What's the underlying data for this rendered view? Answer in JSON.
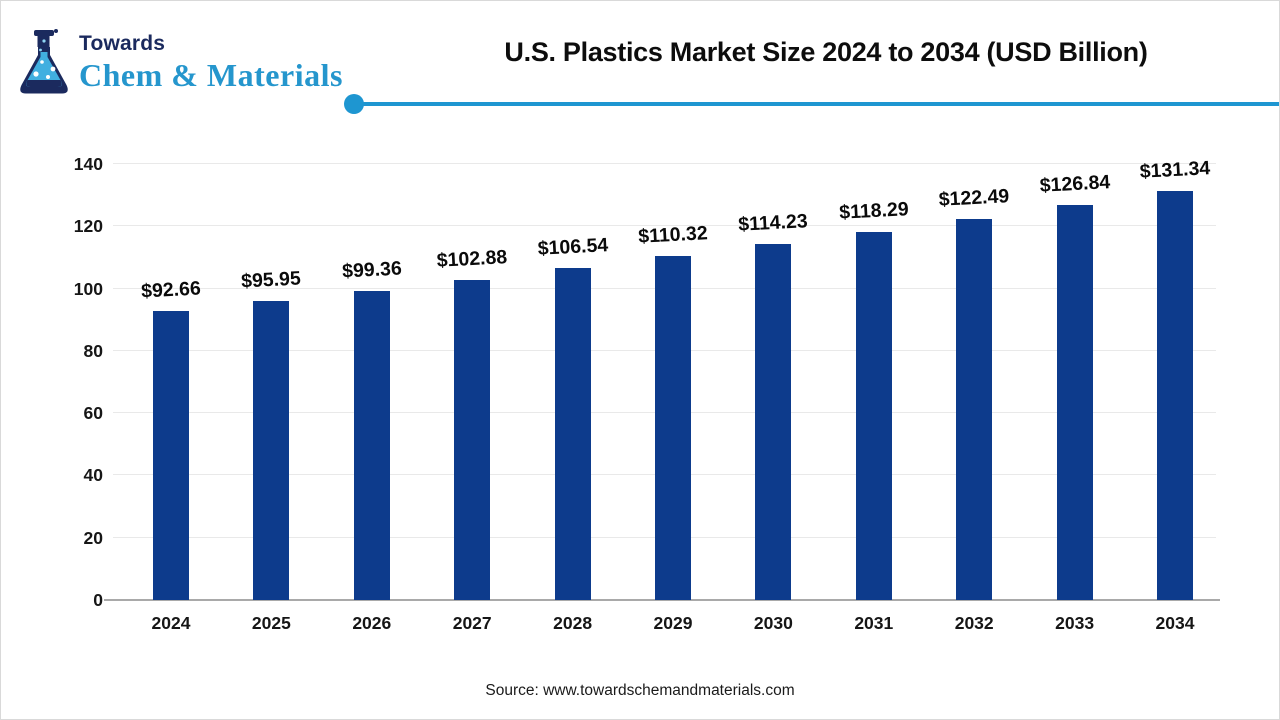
{
  "logo": {
    "top_text": "Towards",
    "main_text": "Chem & Materials"
  },
  "header": {
    "title": "U.S. Plastics Market Size 2024 to 2034 (USD Billion)"
  },
  "chart_data": {
    "type": "bar",
    "title": "U.S. Plastics Market Size 2024 to 2034 (USD Billion)",
    "unit": "USD Billion",
    "categories": [
      "2024",
      "2025",
      "2026",
      "2027",
      "2028",
      "2029",
      "2030",
      "2031",
      "2032",
      "2033",
      "2034"
    ],
    "values": [
      92.66,
      95.95,
      99.36,
      102.88,
      106.54,
      110.32,
      114.23,
      118.29,
      122.49,
      126.84,
      131.34
    ],
    "value_label_prefix": "$",
    "xlabel": "",
    "ylabel": "",
    "ylim": [
      0,
      140
    ],
    "yticks": [
      0,
      20,
      40,
      60,
      80,
      100,
      120,
      140
    ],
    "grid": true,
    "legend": false,
    "bar_color": "#0d3b8c"
  },
  "colors": {
    "bar": "#0d3b8c",
    "accent_line": "#1e96d1",
    "gridline": "#e9e9e9",
    "axis_line": "#a9a9a9",
    "logo_navy": "#1b2a5e",
    "logo_blue": "#2596cd",
    "logo_liquid": "#41afe0"
  },
  "footer": {
    "source": "Source: www.towardschemandmaterials.com"
  }
}
